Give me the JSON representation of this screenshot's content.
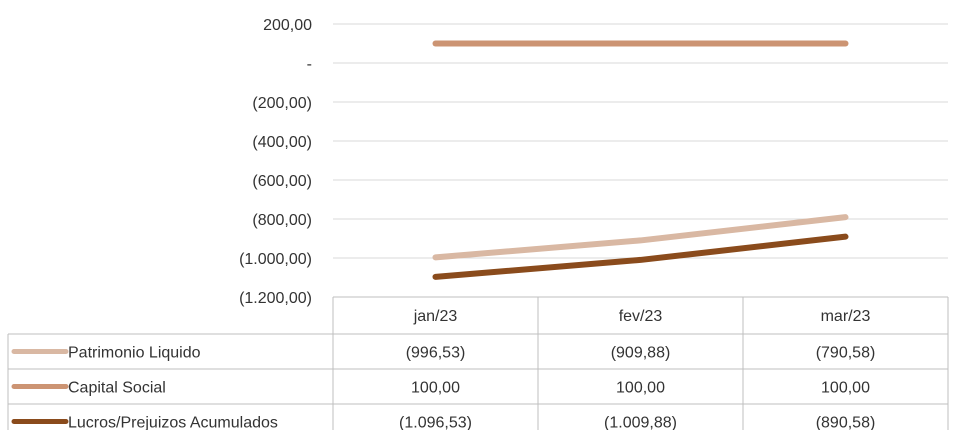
{
  "chart_data": {
    "type": "line",
    "categories": [
      "jan/23",
      "fev/23",
      "mar/23"
    ],
    "y_tick_labels": [
      "200,00",
      "-",
      "(200,00)",
      "(400,00)",
      "(600,00)",
      "(800,00)",
      "(1.000,00)",
      "(1.200,00)"
    ],
    "y_tick_values": [
      200,
      0,
      -200,
      -400,
      -600,
      -800,
      -1000,
      -1200
    ],
    "ylim": [
      -1200,
      200
    ],
    "grid": true,
    "legend": "data-table",
    "series": [
      {
        "name": "Patrimonio Liquido",
        "values": [
          -996.53,
          -909.88,
          -790.58
        ],
        "labels": [
          "(996,53)",
          "(909,88)",
          "(790,58)"
        ],
        "color": "#d9b8a3"
      },
      {
        "name": "Capital Social",
        "values": [
          100.0,
          100.0,
          100.0
        ],
        "labels": [
          "100,00",
          "100,00",
          "100,00"
        ],
        "color": "#cc9473"
      },
      {
        "name": "Lucros/Prejuizos Acumulados",
        "values": [
          -1096.53,
          -1009.88,
          -890.58
        ],
        "labels": [
          "(1.096,53)",
          "(1.009,88)",
          "(890,58)"
        ],
        "color": "#8a4b1c"
      }
    ]
  }
}
